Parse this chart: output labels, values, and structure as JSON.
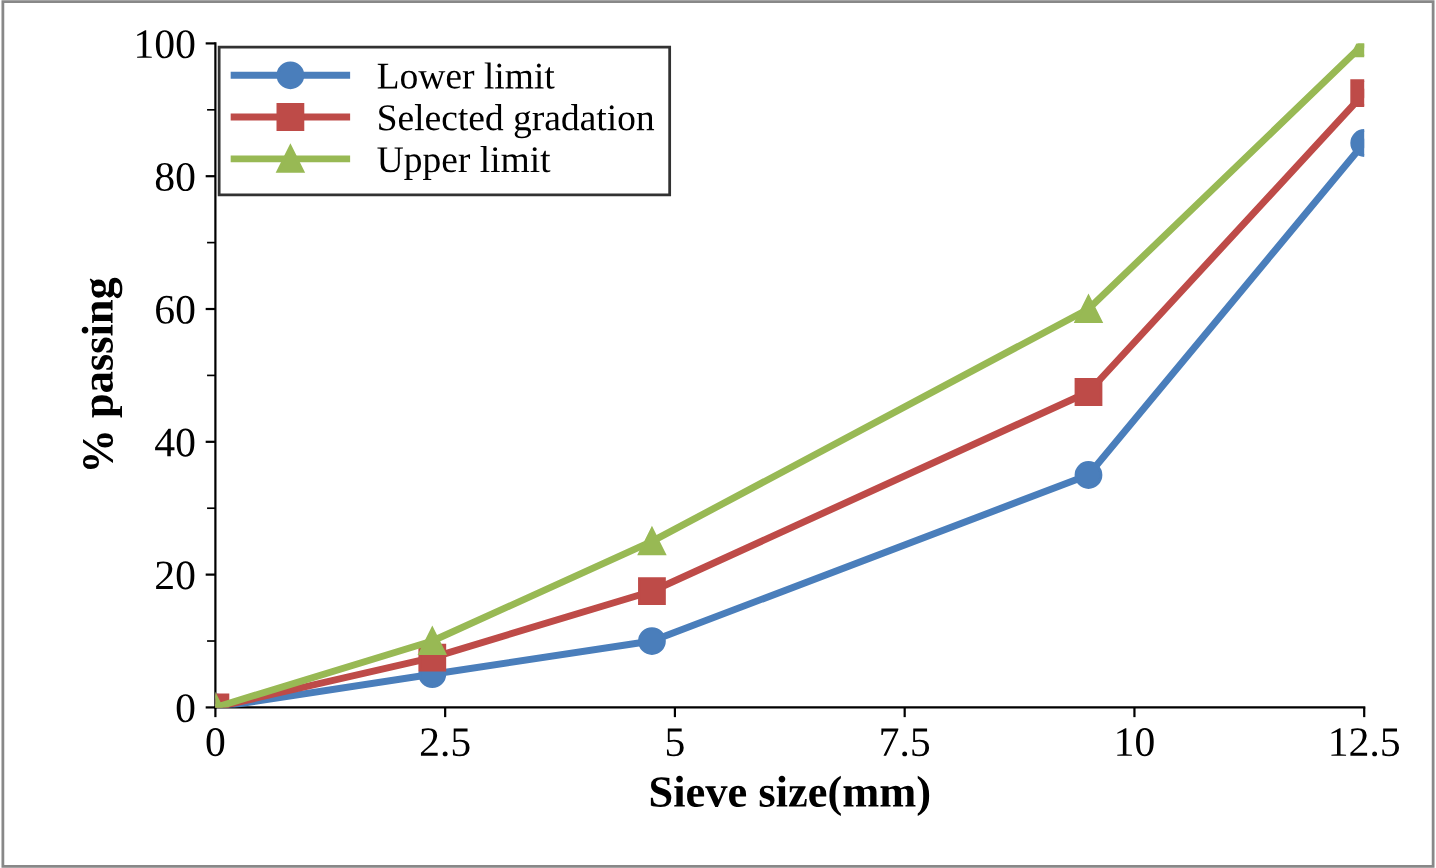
{
  "chart_data": {
    "type": "line",
    "xlabel": "Sieve size(mm)",
    "ylabel": "% passing",
    "x": [
      0,
      2.36,
      4.75,
      9.5,
      12.5
    ],
    "series": [
      {
        "name": "Lower limit",
        "color": "#4a7ebb",
        "marker": "circle",
        "values": [
          0,
          5,
          10,
          35,
          85
        ]
      },
      {
        "name": "Selected gradation",
        "color": "#be4b48",
        "marker": "square",
        "values": [
          0,
          7.5,
          17.5,
          47.5,
          92.5
        ]
      },
      {
        "name": "Upper limit",
        "color": "#98b954",
        "marker": "triangle",
        "values": [
          0,
          10,
          25,
          60,
          100
        ]
      }
    ],
    "xlim": [
      0,
      12.5
    ],
    "xticks": [
      0,
      2.5,
      5,
      7.5,
      10,
      12.5
    ],
    "ylim": [
      0,
      100
    ],
    "yticks": [
      0,
      20,
      40,
      60,
      80,
      100
    ],
    "grid": false,
    "legend": "top left",
    "line_style": "solid"
  }
}
